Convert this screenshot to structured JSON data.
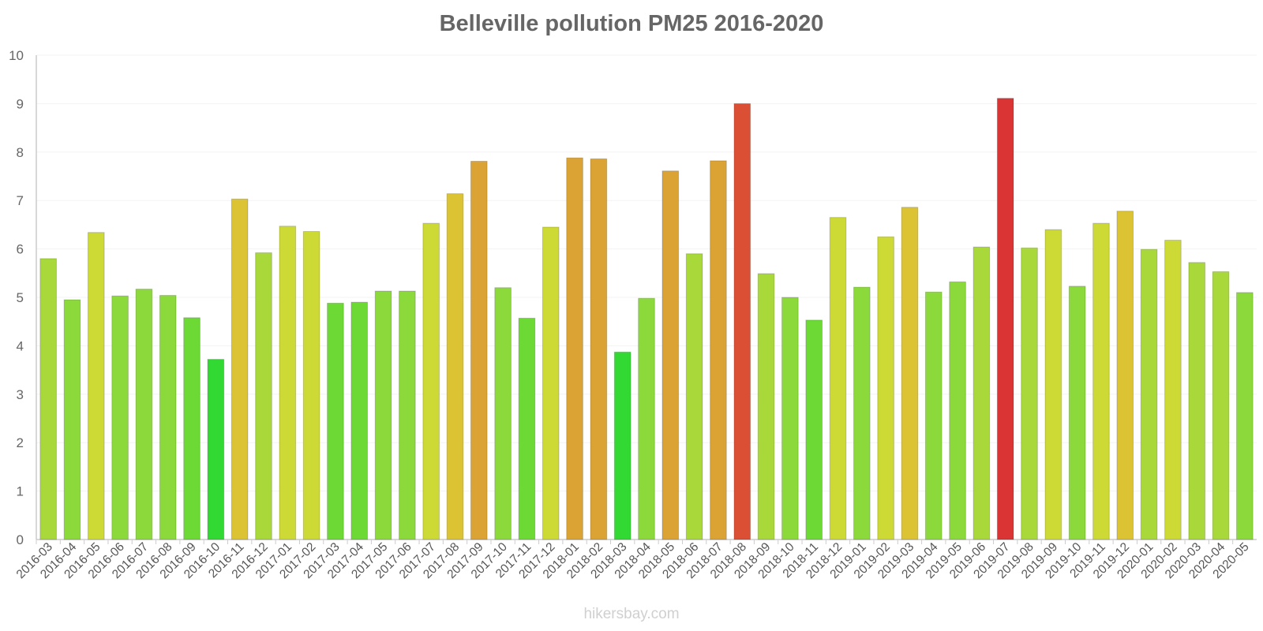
{
  "chart_data": {
    "type": "bar",
    "title": "Belleville pollution PM25 2016-2020",
    "xlabel": "",
    "ylabel": "",
    "ylim": [
      0,
      10
    ],
    "yticks": [
      0,
      1,
      2,
      3,
      4,
      5,
      6,
      7,
      8,
      9,
      10
    ],
    "grid": true,
    "legend": "none",
    "categories": [
      "2016-03",
      "2016-04",
      "2016-05",
      "2016-06",
      "2016-07",
      "2016-08",
      "2016-09",
      "2016-10",
      "2016-11",
      "2016-12",
      "2017-01",
      "2017-02",
      "2017-03",
      "2017-04",
      "2017-05",
      "2017-06",
      "2017-07",
      "2017-08",
      "2017-09",
      "2017-10",
      "2017-11",
      "2017-12",
      "2018-01",
      "2018-02",
      "2018-03",
      "2018-04",
      "2018-05",
      "2018-06",
      "2018-07",
      "2018-08",
      "2018-09",
      "2018-10",
      "2018-11",
      "2018-12",
      "2019-01",
      "2019-02",
      "2019-03",
      "2019-04",
      "2019-05",
      "2019-06",
      "2019-07",
      "2019-08",
      "2019-09",
      "2019-10",
      "2019-11",
      "2019-12",
      "2020-01",
      "2020-02",
      "2020-03",
      "2020-04",
      "2020-05"
    ],
    "values": [
      5.8,
      4.95,
      6.34,
      5.03,
      5.17,
      5.04,
      4.58,
      3.72,
      7.03,
      5.92,
      6.47,
      6.36,
      4.88,
      4.9,
      5.13,
      5.13,
      6.53,
      7.14,
      7.81,
      5.2,
      4.57,
      6.45,
      7.88,
      7.86,
      3.87,
      4.98,
      7.61,
      5.9,
      7.82,
      9.0,
      5.49,
      5.0,
      4.53,
      6.65,
      5.21,
      6.25,
      6.86,
      5.11,
      5.32,
      6.04,
      9.11,
      6.02,
      6.4,
      5.23,
      6.53,
      6.78,
      5.99,
      6.18,
      5.72,
      5.53,
      5.1
    ],
    "colors": [
      "#a8d83a",
      "#8bd93a",
      "#cdd935",
      "#8bd93a",
      "#8bd93a",
      "#8bd93a",
      "#6cd935",
      "#33d933",
      "#dbc334",
      "#a8d83a",
      "#cdd935",
      "#cdd935",
      "#6cd935",
      "#6cd935",
      "#8bd93a",
      "#8bd93a",
      "#cdd935",
      "#dbc334",
      "#dba334",
      "#8bd93a",
      "#6cd935",
      "#cdd935",
      "#dba334",
      "#dba334",
      "#33d933",
      "#8bd93a",
      "#dba334",
      "#a8d83a",
      "#dba334",
      "#db5034",
      "#a8d83a",
      "#8bd93a",
      "#6cd935",
      "#cdd935",
      "#8bd93a",
      "#cdd935",
      "#dbc334",
      "#8bd93a",
      "#8bd93a",
      "#a8d83a",
      "#db3434",
      "#a8d83a",
      "#cdd935",
      "#8bd93a",
      "#cdd935",
      "#dbc334",
      "#a8d83a",
      "#cdd935",
      "#a8d83a",
      "#a8d83a",
      "#8bd93a"
    ]
  },
  "watermark": "hikersbay.com"
}
